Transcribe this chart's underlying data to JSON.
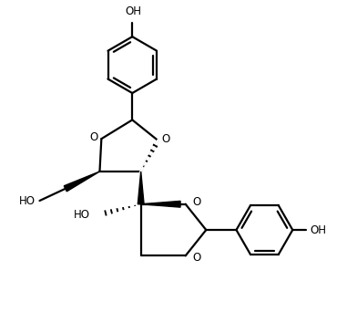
{
  "background": "#ffffff",
  "line_color": "#000000",
  "line_width": 1.6,
  "fig_width": 3.81,
  "fig_height": 3.42,
  "dpi": 100,
  "xlim": [
    0,
    10
  ],
  "ylim": [
    0,
    9
  ]
}
